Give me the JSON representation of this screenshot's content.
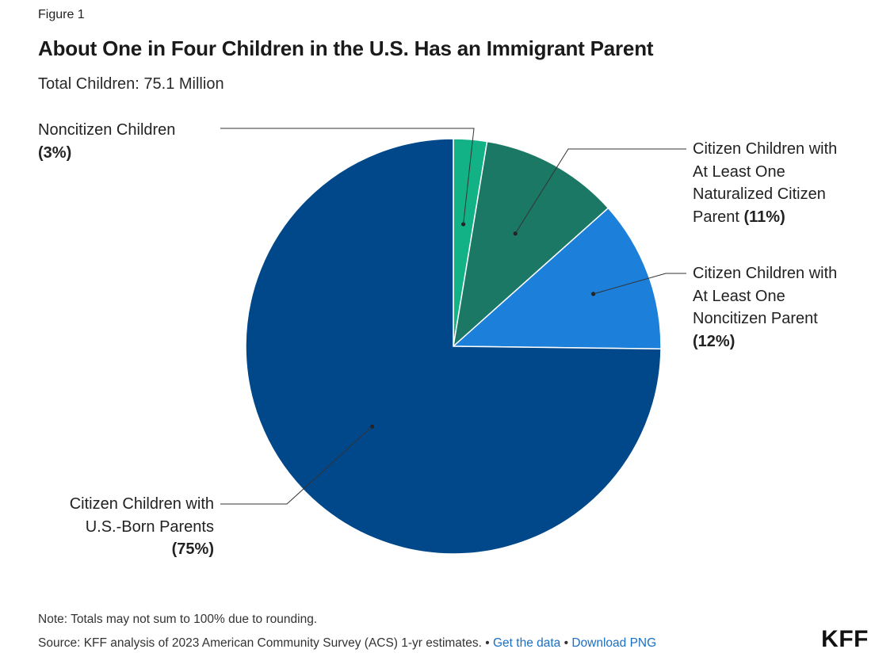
{
  "figure_label": "Figure 1",
  "chart_data": {
    "type": "pie",
    "title": "About One in Four Children in the U.S. Has an Immigrant Parent",
    "subtitle": "Total Children: 75.1 Million",
    "slices": [
      {
        "label": "Noncitizen Children",
        "label_lines": [
          "Noncitizen Children"
        ],
        "pct_text": "(3%)",
        "value": 2.6,
        "color": "#12b286"
      },
      {
        "label": "Citizen Children with At Least One Naturalized Citizen Parent",
        "label_lines": [
          "Citizen Children with",
          "At Least One",
          "Naturalized Citizen",
          "Parent"
        ],
        "pct_text": "(11%)",
        "value": 10.8,
        "color": "#1b7865"
      },
      {
        "label": "Citizen Children with At Least One Noncitizen Parent",
        "label_lines": [
          "Citizen Children with",
          "At Least One",
          "Noncitizen Parent"
        ],
        "pct_text": "(12%)",
        "value": 11.8,
        "color": "#1c7fda"
      },
      {
        "label": "Citizen Children with U.S.-Born Parents",
        "label_lines": [
          "Citizen Children with",
          "U.S.-Born Parents"
        ],
        "pct_text": "(75%)",
        "value": 74.8,
        "color": "#00488a"
      }
    ]
  },
  "footer": {
    "note": "Note: Totals may not sum to 100% due to rounding.",
    "source_text": "Source: KFF analysis of 2023 American Community Survey (ACS) 1-yr estimates.",
    "separator": "•",
    "get_data_link": "Get the data",
    "download_link": "Download PNG"
  },
  "logo": "KFF"
}
